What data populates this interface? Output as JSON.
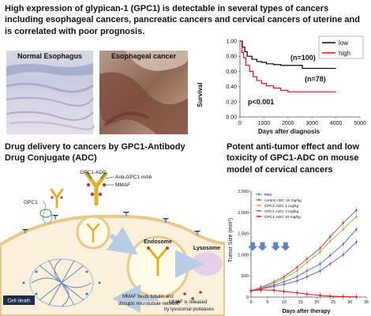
{
  "headlines": {
    "top": "High expression of glypican-1 (GPC1) is detectable in several types of cancers including esophageal cancers, pancreatic cancers and cervical cancers of uterine and is correlated with poor prognosis.",
    "drug_delivery": "Drug delivery to cancers by GPC1-Antibody Drug Conjugate (ADC)",
    "antitumor": "Potent anti-tumor effect and low toxicity of GPC1-ADC on mouse model of cervical cancers"
  },
  "photos": {
    "normal": "Normal Esophagus",
    "cancer": "Esophageal cancer"
  },
  "survival_chart": {
    "ylabel": "Survival",
    "xlabel": "Days after diagnosis",
    "x_ticks": [
      "0",
      "1000",
      "2000",
      "3000",
      "4000",
      "5000"
    ],
    "y_ticks": [
      "0.00",
      "0.20",
      "0.40",
      "0.60",
      "0.80",
      "1.00"
    ],
    "legend": [
      {
        "label": "low",
        "color": "#000000"
      },
      {
        "label": "high",
        "color": "#e8111a"
      }
    ],
    "n_low": "(n=100)",
    "n_high": "(n=78)",
    "p_value": "p<0.001"
  },
  "chart_data": [
    {
      "type": "line",
      "xlabel": "Days after diagnosis",
      "ylabel": "Survival",
      "xlim": [
        0,
        5000
      ],
      "ylim": [
        0,
        1
      ],
      "legend_position": "top-right",
      "series": [
        {
          "name": "low",
          "color": "#000000",
          "x": [
            0,
            100,
            200,
            300,
            500,
            700,
            900,
            1100,
            1400,
            1700,
            2100,
            2500,
            2600,
            3200,
            4000
          ],
          "y": [
            1.0,
            0.92,
            0.86,
            0.8,
            0.76,
            0.73,
            0.72,
            0.7,
            0.69,
            0.68,
            0.68,
            0.68,
            0.64,
            0.64,
            0.64
          ]
        },
        {
          "name": "high",
          "color": "#e8111a",
          "x": [
            0,
            80,
            150,
            250,
            400,
            550,
            700,
            900,
            1100,
            1400,
            1700,
            2000,
            2500,
            3000,
            4000
          ],
          "y": [
            1.0,
            0.85,
            0.78,
            0.68,
            0.6,
            0.53,
            0.48,
            0.44,
            0.41,
            0.38,
            0.35,
            0.33,
            0.33,
            0.33,
            0.33
          ]
        }
      ]
    },
    {
      "type": "line",
      "xlabel": "Days after therapy",
      "ylabel": "Tumor Size (mm³)",
      "xlim": [
        0,
        35
      ],
      "ylim": [
        0,
        2500
      ],
      "legend_position": "top-left",
      "x": [
        0,
        3,
        7,
        10,
        14,
        17,
        21,
        24,
        28,
        32
      ],
      "series": [
        {
          "name": "PBS",
          "color": "#5b78c4",
          "y": [
            150,
            200,
            280,
            360,
            480,
            620,
            780,
            980,
            1250,
            1600
          ]
        },
        {
          "name": "control ADC 10 mg/kg",
          "color": "#c0504d",
          "y": [
            150,
            230,
            360,
            480,
            700,
            900,
            1150,
            1420,
            1750,
            2050
          ]
        },
        {
          "name": "GPC1-ADC 1 mg/kg",
          "color": "#9bbb59",
          "y": [
            150,
            210,
            320,
            440,
            620,
            820,
            1060,
            1320,
            1600,
            1900
          ]
        },
        {
          "name": "GPC1-ADC 3 mg/kg",
          "color": "#8064a2",
          "y": [
            150,
            190,
            250,
            300,
            380,
            480,
            620,
            780,
            1000,
            1300
          ]
        },
        {
          "name": "GPC1-ADC 10 mg/kg",
          "color": "#e8111a",
          "y": [
            150,
            170,
            160,
            130,
            100,
            70,
            40,
            20,
            10,
            5
          ]
        }
      ]
    }
  ],
  "tumor_chart": {
    "ylabel": "Tumor Size (mm³)",
    "xlabel": "Days after therapy",
    "x_ticks": [
      "0",
      "5",
      "10",
      "15",
      "20",
      "25",
      "30",
      "35"
    ],
    "y_ticks": [
      "0",
      "500",
      "1,000",
      "1,500",
      "2,000",
      "2,500"
    ],
    "legend": [
      "PBS",
      "control ADC 10 mg/kg",
      "GPC1-ADC 1 mg/kg",
      "GPC1-ADC 3 mg/kg",
      "GPC1-ADC 10 mg/kg"
    ]
  },
  "diagram": {
    "gpc1_adc": "GPC1-ADC",
    "anti_gpc1": "Anti-GPC1 mAb",
    "mmaf": "MMAF",
    "gpc1": "GPC1",
    "endosome": "Endosome",
    "lysosome": "Lysosome",
    "cell_death": "Cell death",
    "binds_line1": "MMAF binds tubulin and",
    "binds_line2": "disrupts microtubule network",
    "released_line1": "MMAF is released",
    "released_line2": "by lysosomal proteases"
  },
  "colors": {
    "cell_membrane": "#e8c98a",
    "cell_fill": "#fbf0dc",
    "endosome_fill": "#fffbe6",
    "arrow": "#b8cce4",
    "mab": "#e0b030",
    "mmaf": "#c0392b"
  }
}
